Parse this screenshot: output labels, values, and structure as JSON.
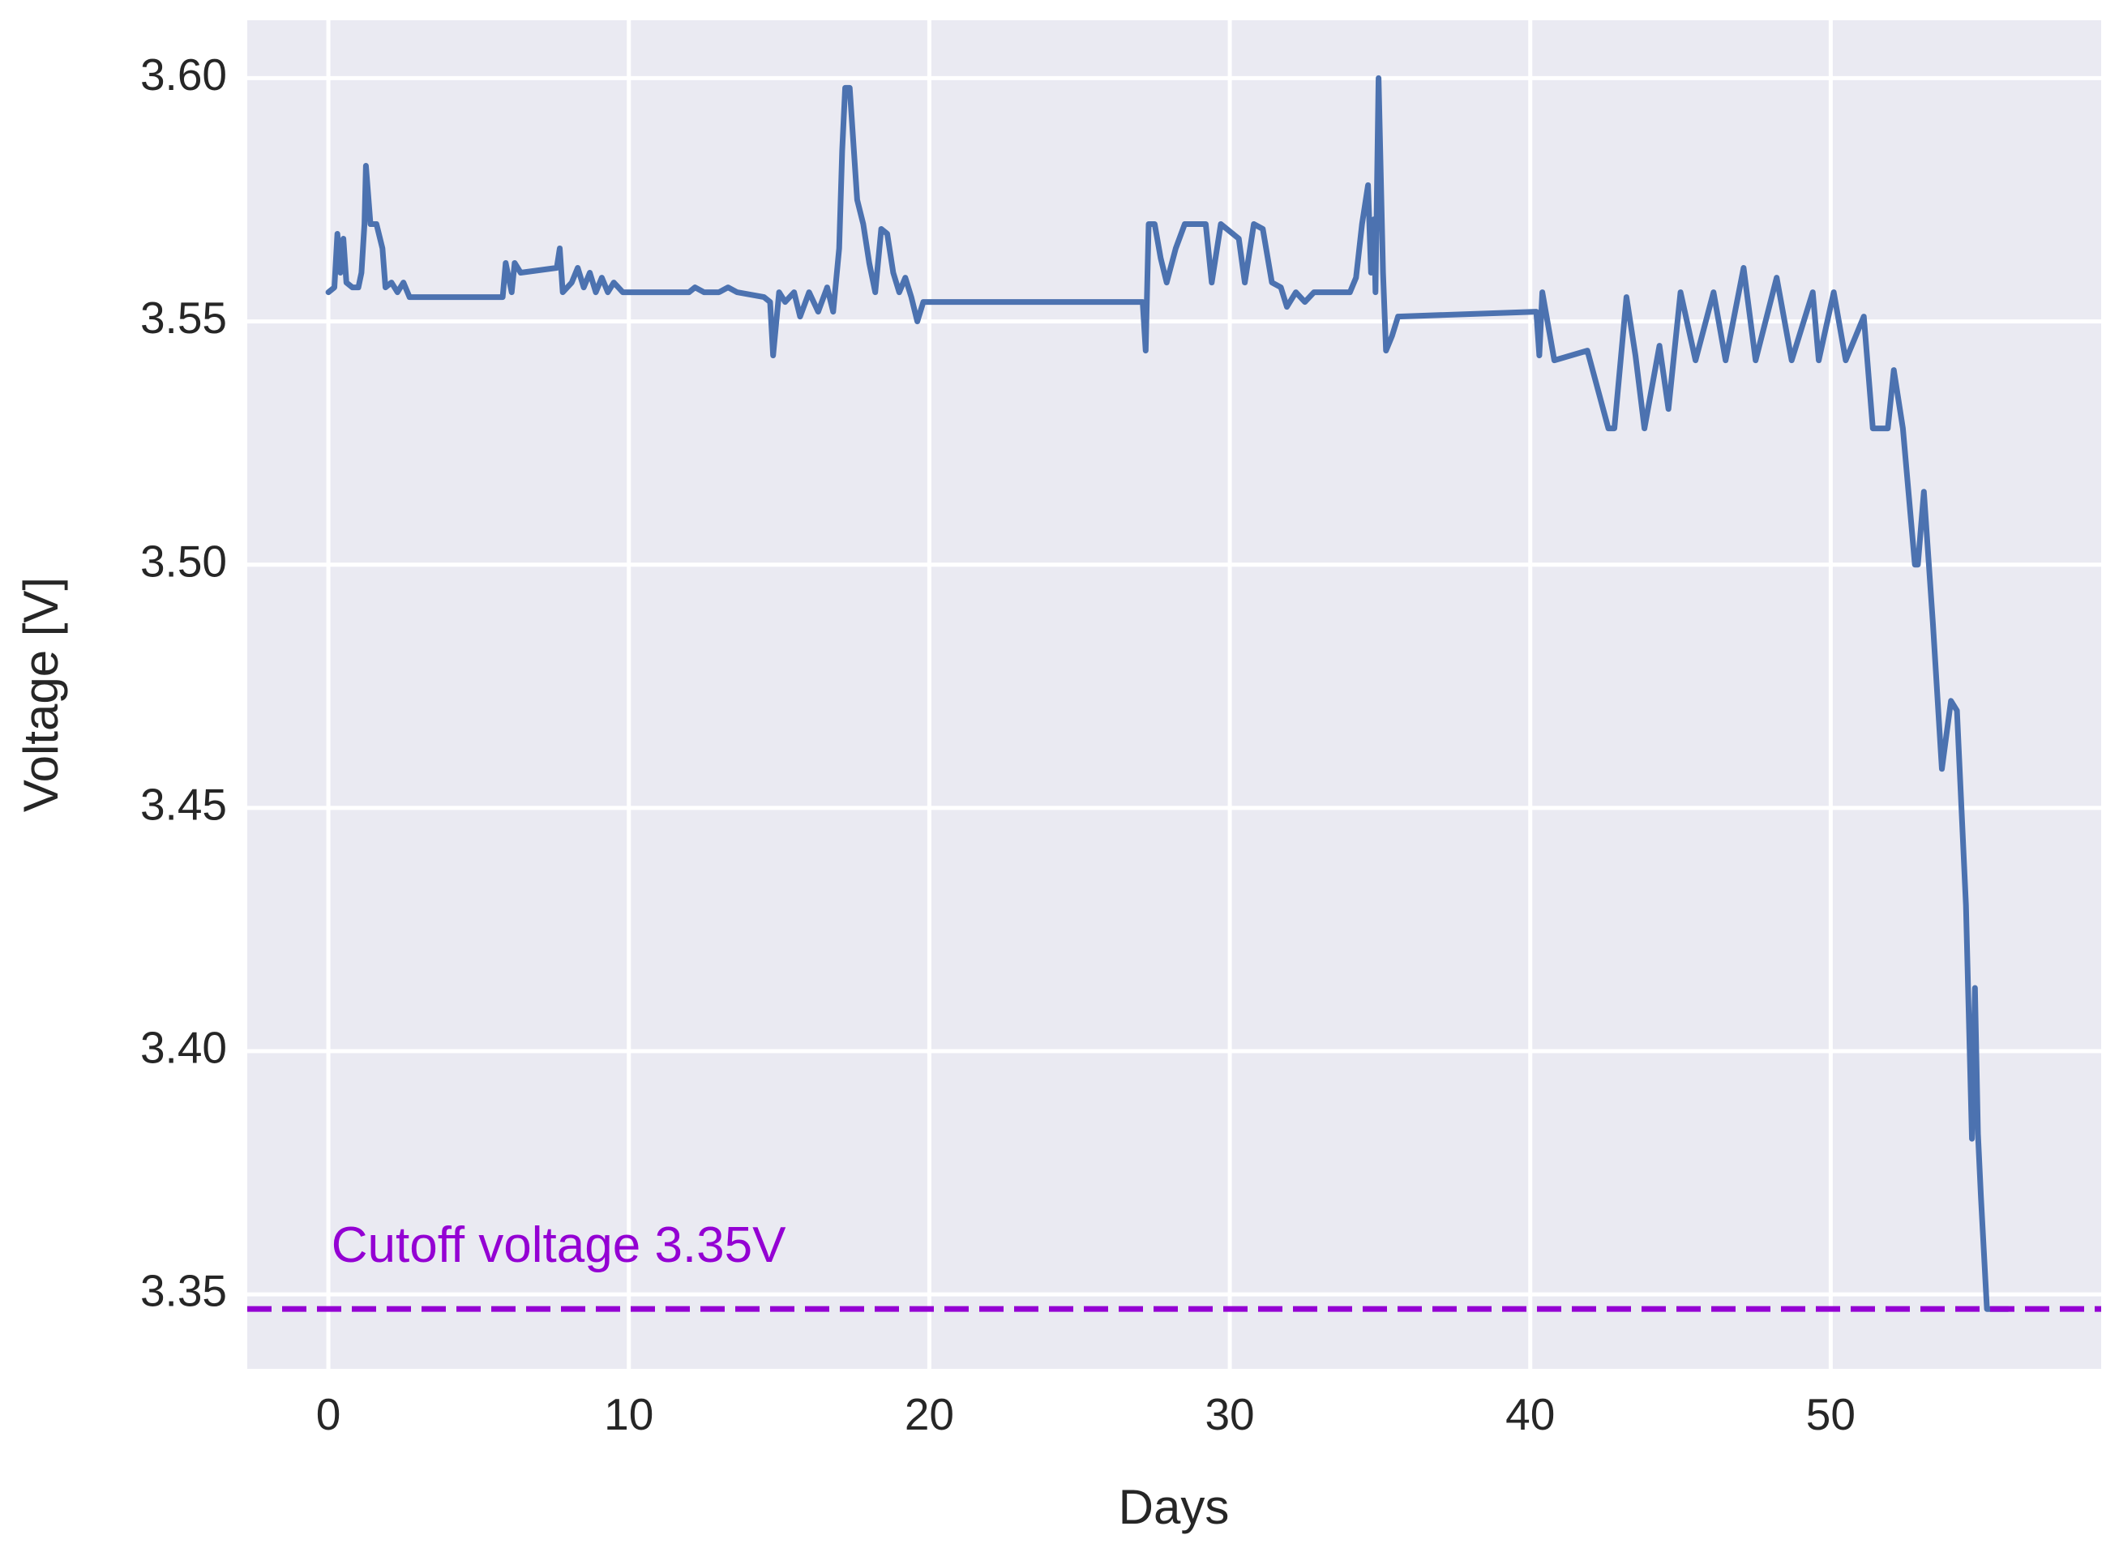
{
  "chart_data": {
    "type": "line",
    "xlabel": "Days",
    "ylabel": "Voltage [V]",
    "color": "#4c72b0",
    "grid": true,
    "xlim": [
      -2.7,
      59.0
    ],
    "ylim": [
      3.3347,
      3.6119
    ],
    "xticks": [
      0,
      10,
      20,
      30,
      40,
      50
    ],
    "yticks": [
      3.35,
      {
        "value": 3.4,
        "label": "3.40"
      },
      3.45,
      {
        "value": 3.5,
        "label": "3.50"
      },
      3.55,
      {
        "value": 3.6,
        "label": "3.60"
      }
    ],
    "cutoff": {
      "value": 3.347,
      "label": "Cutoff voltage 3.35V",
      "color": "#9400d3"
    },
    "x": [
      0,
      0.2,
      0.3,
      0.4,
      0.5,
      0.6,
      0.8,
      1.0,
      1.1,
      1.2,
      1.25,
      1.4,
      1.6,
      1.8,
      1.9,
      2.1,
      2.3,
      2.5,
      2.7,
      2.9,
      5.8,
      5.9,
      6.1,
      6.2,
      6.4,
      7.6,
      7.7,
      7.8,
      8.1,
      8.3,
      8.5,
      8.7,
      8.9,
      9.1,
      9.3,
      9.5,
      9.8,
      12,
      12.2,
      12.5,
      13,
      13.3,
      13.6,
      14.5,
      14.7,
      14.8,
      15.0,
      15.2,
      15.5,
      15.7,
      16.0,
      16.3,
      16.6,
      16.8,
      17.0,
      17.1,
      17.2,
      17.35,
      17.6,
      17.8,
      18.0,
      18.2,
      18.4,
      18.6,
      18.8,
      19.0,
      19.2,
      19.4,
      19.6,
      19.8,
      20,
      27.1,
      27.2,
      27.3,
      27.5,
      27.7,
      27.9,
      28.2,
      28.5,
      29.2,
      29.4,
      29.7,
      30.3,
      30.5,
      30.8,
      31.1,
      31.4,
      31.7,
      31.9,
      32.2,
      32.5,
      32.8,
      34.0,
      34.2,
      34.4,
      34.6,
      34.7,
      34.8,
      34.85,
      34.95,
      35.1,
      35.2,
      35.4,
      35.6,
      40.2,
      40.3,
      40.4,
      40.8,
      41.9,
      42.6,
      42.8,
      43.2,
      43.5,
      43.8,
      44.3,
      44.6,
      45.0,
      45.5,
      46.1,
      46.5,
      47.1,
      47.5,
      48.2,
      48.7,
      49.4,
      49.6,
      50.1,
      50.5,
      51.1,
      51.4,
      51.9,
      52.1,
      52.4,
      52.6,
      52.8,
      52.9,
      53.1,
      53.4,
      53.7,
      54.0,
      54.2,
      54.5,
      54.7,
      54.8,
      54.9,
      55.0,
      55.2,
      55.9
    ],
    "values": [
      3.556,
      3.557,
      3.568,
      3.56,
      3.567,
      3.558,
      3.557,
      3.557,
      3.56,
      3.57,
      3.582,
      3.57,
      3.57,
      3.565,
      3.557,
      3.558,
      3.556,
      3.558,
      3.555,
      3.555,
      3.555,
      3.562,
      3.556,
      3.562,
      3.56,
      3.561,
      3.565,
      3.556,
      3.558,
      3.561,
      3.557,
      3.56,
      3.556,
      3.559,
      3.556,
      3.558,
      3.556,
      3.556,
      3.557,
      3.556,
      3.556,
      3.557,
      3.556,
      3.555,
      3.554,
      3.543,
      3.556,
      3.554,
      3.556,
      3.551,
      3.556,
      3.552,
      3.557,
      3.552,
      3.565,
      3.585,
      3.598,
      3.598,
      3.575,
      3.57,
      3.562,
      3.556,
      3.569,
      3.568,
      3.56,
      3.556,
      3.559,
      3.555,
      3.55,
      3.554,
      3.554,
      3.554,
      3.544,
      3.57,
      3.57,
      3.563,
      3.558,
      3.565,
      3.57,
      3.57,
      3.558,
      3.57,
      3.567,
      3.558,
      3.57,
      3.569,
      3.558,
      3.557,
      3.553,
      3.556,
      3.554,
      3.556,
      3.556,
      3.559,
      3.57,
      3.578,
      3.56,
      3.571,
      3.556,
      3.6,
      3.56,
      3.544,
      3.547,
      3.551,
      3.552,
      3.543,
      3.556,
      3.542,
      3.544,
      3.528,
      3.528,
      3.555,
      3.543,
      3.528,
      3.545,
      3.532,
      3.556,
      3.542,
      3.556,
      3.542,
      3.561,
      3.542,
      3.559,
      3.542,
      3.556,
      3.542,
      3.556,
      3.542,
      3.551,
      3.528,
      3.528,
      3.54,
      3.528,
      3.514,
      3.5,
      3.5,
      3.515,
      3.488,
      3.458,
      3.472,
      3.47,
      3.43,
      3.382,
      3.413,
      3.383,
      3.37,
      3.347,
      3.347
    ]
  }
}
